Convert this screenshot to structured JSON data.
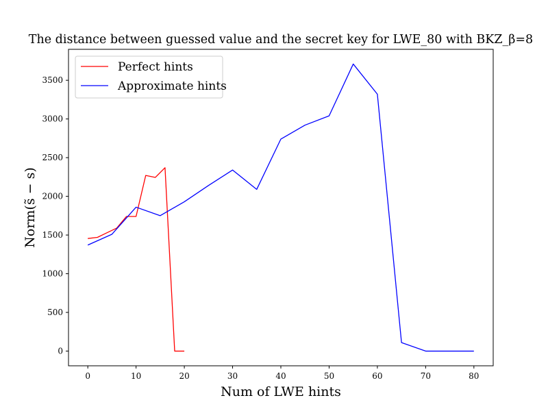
{
  "chart_data": {
    "type": "line",
    "title": "The distance between guessed value and the secret key for LWE_80 with BKZ_β=8",
    "xlabel": "Num of LWE hints",
    "ylabel": "Norm(s̃ − s)",
    "xlim": [
      -4,
      84
    ],
    "ylim": [
      -190,
      3900
    ],
    "xticks": [
      0,
      10,
      20,
      30,
      40,
      50,
      60,
      70,
      80
    ],
    "yticks": [
      0,
      500,
      1000,
      1500,
      2000,
      2500,
      3000,
      3500
    ],
    "grid": false,
    "legend_position": "top-left",
    "series": [
      {
        "name": "Perfect hints",
        "color": "#ff0000",
        "x": [
          0,
          2,
          4,
          6,
          8,
          10,
          12,
          14,
          16,
          18,
          20
        ],
        "y": [
          1455,
          1470,
          1530,
          1590,
          1740,
          1740,
          2270,
          2245,
          2370,
          0,
          0
        ]
      },
      {
        "name": "Approximate hints",
        "color": "#0000ff",
        "x": [
          0,
          5,
          10,
          15,
          20,
          25,
          30,
          35,
          40,
          45,
          50,
          55,
          60,
          65,
          70,
          75,
          80
        ],
        "y": [
          1370,
          1510,
          1860,
          1750,
          1930,
          2140,
          2340,
          2090,
          2740,
          2920,
          3040,
          3710,
          3320,
          110,
          0,
          0,
          0
        ]
      }
    ]
  }
}
